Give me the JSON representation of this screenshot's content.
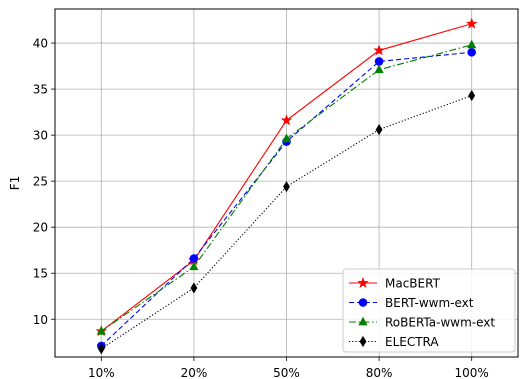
{
  "chart_data": {
    "type": "line",
    "categories": [
      "10%",
      "20%",
      "50%",
      "80%",
      "100%"
    ],
    "ylabel": "F1",
    "xlabel": "",
    "ylim": [
      5.9,
      43.7
    ],
    "yticks": [
      10,
      15,
      20,
      25,
      30,
      35,
      40
    ],
    "grid": true,
    "legend_position": "lower-right",
    "series": [
      {
        "name": "MacBERT",
        "values": [
          8.7,
          16.4,
          31.6,
          39.2,
          42.1
        ],
        "color": "#ff0000",
        "dash": "solid",
        "marker": "star"
      },
      {
        "name": "BERT-wwm-ext",
        "values": [
          7.1,
          16.6,
          29.3,
          38.0,
          39.0
        ],
        "color": "#0000ff",
        "dash": "dashed",
        "marker": "circle"
      },
      {
        "name": "RoBERTa-wwm-ext",
        "values": [
          8.7,
          15.7,
          29.6,
          37.1,
          39.8
        ],
        "color": "#008000",
        "dash": "dashdot",
        "marker": "triangle"
      },
      {
        "name": "ELECTRA",
        "values": [
          6.8,
          13.4,
          24.4,
          30.6,
          34.3
        ],
        "color": "#000000",
        "dash": "dotted",
        "marker": "diamond"
      }
    ]
  }
}
